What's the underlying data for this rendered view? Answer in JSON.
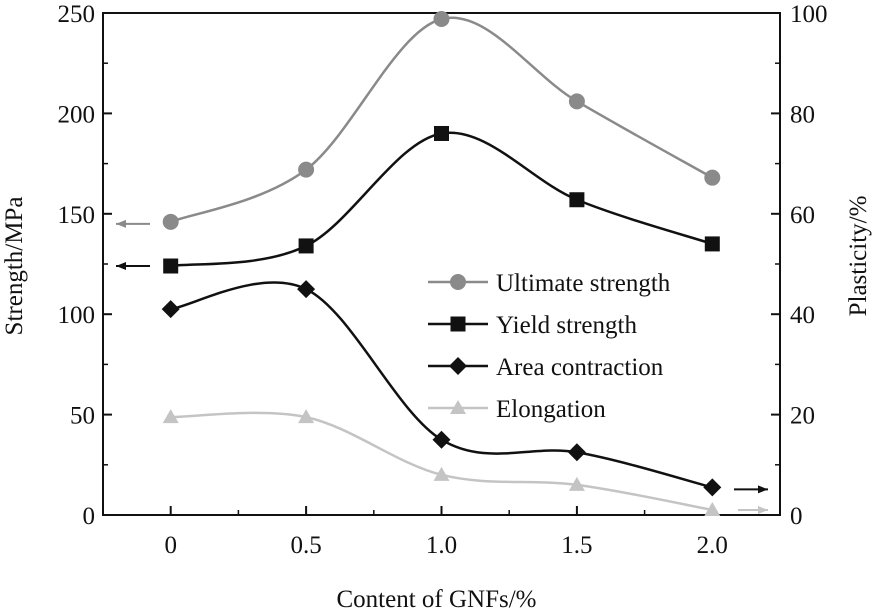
{
  "chart_data": {
    "type": "line",
    "xlabel": "Content of GNFs/%",
    "ylabel_left": "Strength/MPa",
    "ylabel_right": "Plasticity/%",
    "x_categories": [
      "0",
      "0.5",
      "1.0",
      "1.5",
      "2.0"
    ],
    "x_values": [
      0,
      0.5,
      1.0,
      1.5,
      2.0
    ],
    "xlim": [
      -0.25,
      2.25
    ],
    "ylim_left": [
      0,
      250
    ],
    "ylim_right": [
      0,
      100
    ],
    "yticks_left": [
      "0",
      "50",
      "100",
      "150",
      "200",
      "250"
    ],
    "yticks_right": [
      "0",
      "20",
      "40",
      "60",
      "80",
      "100"
    ],
    "legend_position": "center-right",
    "series": [
      {
        "name": "Ultimate strength",
        "axis": "left",
        "marker": "circle",
        "color": "#8a8a8a",
        "values": [
          146,
          172,
          247,
          206,
          168
        ]
      },
      {
        "name": "Yield strength",
        "axis": "left",
        "marker": "square",
        "color": "#111111",
        "values": [
          124,
          134,
          190,
          157,
          135
        ]
      },
      {
        "name": "Area contraction",
        "axis": "right",
        "marker": "diamond",
        "color": "#111111",
        "values": [
          41,
          45,
          15,
          12.5,
          5.5
        ]
      },
      {
        "name": "Elongation",
        "axis": "right",
        "marker": "triangle",
        "color": "#c4c4c4",
        "values": [
          19.5,
          19.5,
          8,
          6,
          1
        ]
      }
    ]
  }
}
